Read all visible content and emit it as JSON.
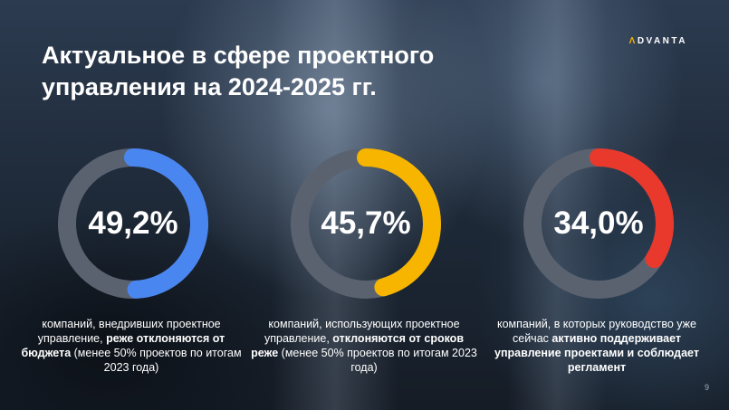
{
  "slide": {
    "title": "Актуальное в сфере проектного управления на 2024-2025 гг.",
    "logo_text": "DVANTA",
    "logo_mark": "Λ",
    "page_number": "9"
  },
  "stats": [
    {
      "value_text": "49,2%",
      "percent": 49.2,
      "color": "#4a86f0",
      "caption_plain_1": "компаний, внедривших проектное управление, ",
      "caption_bold": "реже отклоняются от бюджета",
      "caption_plain_2": " (менее 50% проектов по итогам 2023 года)"
    },
    {
      "value_text": "45,7%",
      "percent": 45.7,
      "color": "#f7b500",
      "caption_plain_1": "компаний, использующих проектное управление, ",
      "caption_bold": "отклоняются от сроков реже",
      "caption_plain_2": " (менее 50% проектов по итогам 2023 года)"
    },
    {
      "value_text": "34,0%",
      "percent": 34.0,
      "color": "#e8392c",
      "caption_plain_1": "компаний, в которых руководство уже сейчас ",
      "caption_bold": "активно поддерживает управление проектами и соблюдает регламент",
      "caption_plain_2": ""
    }
  ],
  "track_color": "#5a6270"
}
